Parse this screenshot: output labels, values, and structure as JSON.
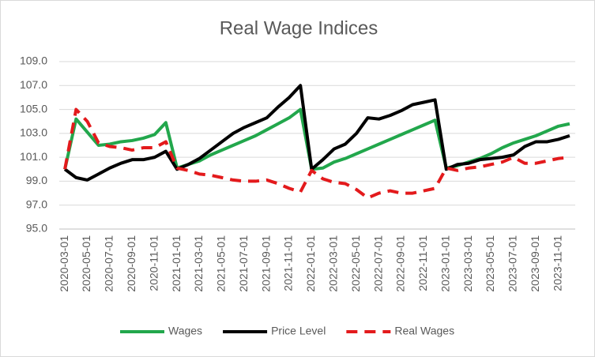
{
  "chart_data": {
    "type": "line",
    "title": "Real Wage Indices",
    "categories": [
      "2020-03-01",
      null,
      "2020-05-01",
      null,
      "2020-07-01",
      null,
      "2020-09-01",
      null,
      "2020-11-01",
      null,
      "2021-01-01",
      null,
      "2021-03-01",
      null,
      "2021-05-01",
      null,
      "2021-07-01",
      null,
      "2021-09-01",
      null,
      "2021-11-01",
      null,
      "2022-01-01",
      null,
      "2022-03-01",
      null,
      "2022-05-01",
      null,
      "2022-07-01",
      null,
      "2022-09-01",
      null,
      "2022-11-01",
      null,
      "2023-01-01",
      null,
      "2023-03-01",
      null,
      "2023-05-01",
      null,
      "2023-07-01",
      null,
      "2023-09-01",
      null,
      "2023-11-01",
      null
    ],
    "series": [
      {
        "name": "Wages",
        "color": "#22a74c",
        "dash": false,
        "values": [
          100.0,
          104.2,
          103.1,
          102.0,
          102.1,
          102.3,
          102.4,
          102.6,
          102.9,
          103.9,
          100.1,
          100.4,
          100.7,
          101.2,
          101.6,
          102.0,
          102.4,
          102.8,
          103.3,
          103.8,
          104.3,
          105.0,
          100.0,
          100.1,
          100.6,
          100.9,
          101.3,
          101.7,
          102.1,
          102.5,
          102.9,
          103.3,
          103.7,
          104.1,
          100.1,
          100.3,
          100.6,
          100.9,
          101.3,
          101.8,
          102.2,
          102.5,
          102.8,
          103.2,
          103.6,
          103.8
        ]
      },
      {
        "name": "Price Level",
        "color": "#000000",
        "dash": false,
        "values": [
          100.0,
          99.3,
          99.1,
          99.6,
          100.1,
          100.5,
          100.8,
          100.8,
          101.0,
          101.5,
          100.0,
          100.4,
          100.9,
          101.6,
          102.3,
          103.0,
          103.5,
          103.9,
          104.3,
          105.2,
          106.0,
          107.0,
          100.0,
          100.8,
          101.7,
          102.1,
          103.0,
          104.3,
          104.2,
          104.5,
          104.9,
          105.4,
          105.6,
          105.8,
          100.0,
          100.4,
          100.5,
          100.8,
          100.9,
          101.0,
          101.2,
          101.9,
          102.3,
          102.3,
          102.5,
          102.8
        ]
      },
      {
        "name": "Real Wages",
        "color": "#e31a1c",
        "dash": true,
        "values": [
          100.0,
          105.0,
          104.0,
          102.2,
          101.9,
          101.8,
          101.6,
          101.8,
          101.8,
          102.3,
          100.1,
          99.9,
          99.6,
          99.5,
          99.3,
          99.1,
          99.0,
          99.0,
          99.1,
          98.8,
          98.4,
          98.1,
          99.9,
          99.2,
          98.9,
          98.8,
          98.3,
          97.6,
          98.0,
          98.2,
          98.0,
          98.0,
          98.2,
          98.4,
          100.1,
          99.9,
          100.1,
          100.2,
          100.4,
          100.6,
          101.0,
          100.5,
          100.5,
          100.7,
          100.9,
          101.0
        ]
      }
    ],
    "ylim": [
      95,
      109
    ],
    "yticks": [
      {
        "value": 95,
        "label": "95.0"
      },
      {
        "value": 97,
        "label": "97.0"
      },
      {
        "value": 99,
        "label": "99.0"
      },
      {
        "value": 101,
        "label": "101.0"
      },
      {
        "value": 103,
        "label": "103.0"
      },
      {
        "value": 105,
        "label": "105.0"
      },
      {
        "value": 107,
        "label": "107.0"
      },
      {
        "value": 109,
        "label": "109.0"
      }
    ],
    "grid": true,
    "legend": "bottom"
  }
}
